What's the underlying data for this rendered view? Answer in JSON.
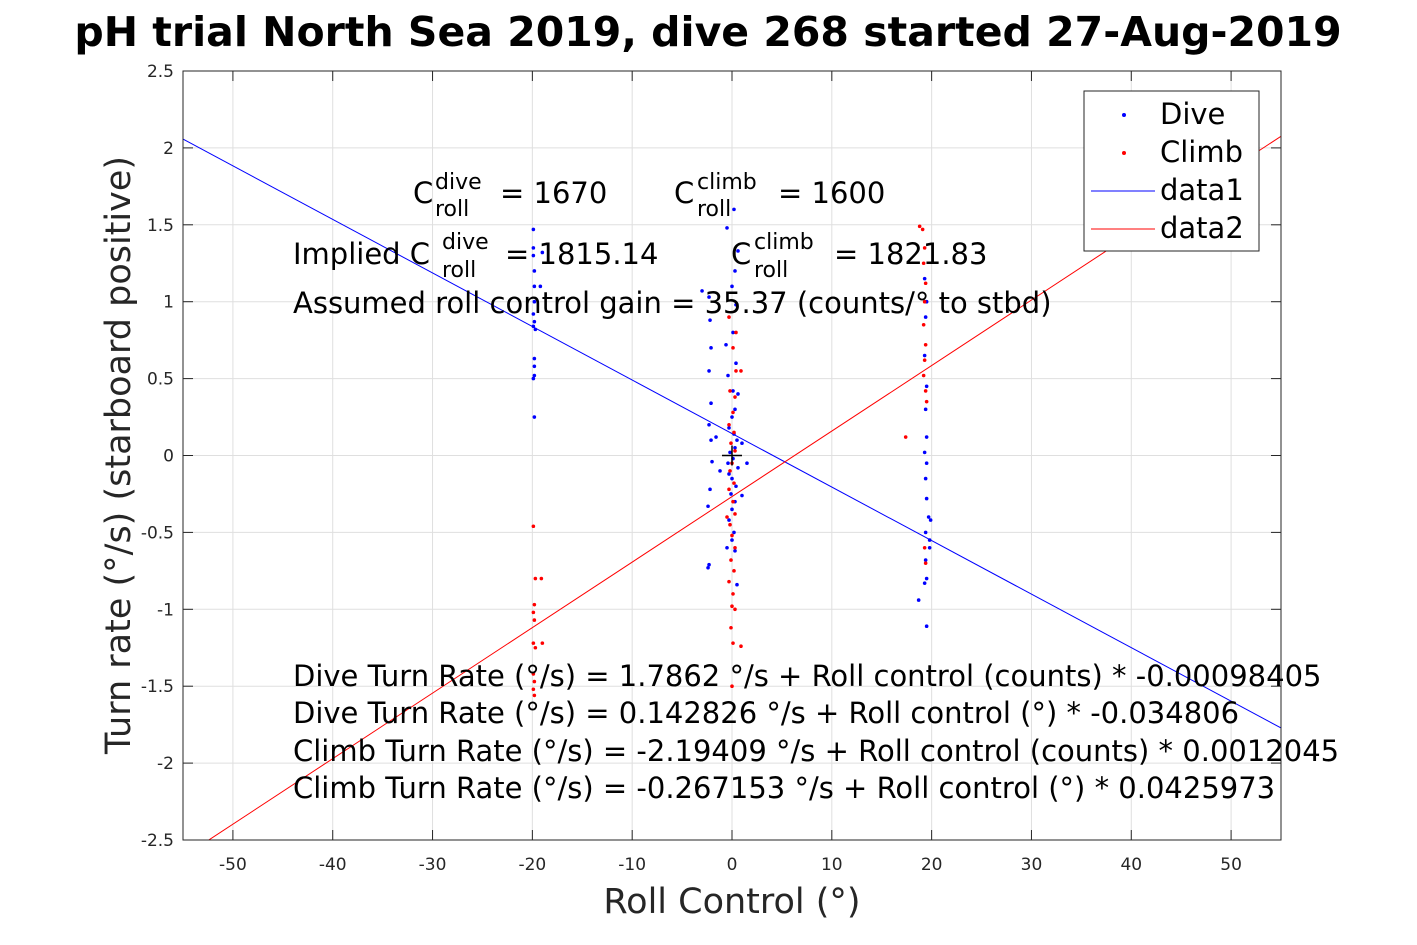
{
  "chart_data": {
    "type": "scatter",
    "title": "pH trial North Sea 2019, dive 268 started 27-Aug-2019",
    "xlabel": "Roll Control (°)",
    "ylabel": "Turn rate (°/s) (starboard positive)",
    "xlim": [
      -55,
      55
    ],
    "ylim": [
      -2.5,
      2.5
    ],
    "xticks": [
      "-50",
      "-40",
      "-30",
      "-20",
      "-10",
      "0",
      "10",
      "20",
      "30",
      "40",
      "50"
    ],
    "yticks": [
      "2.5",
      "2",
      "1.5",
      "1",
      "0.5",
      "0",
      "-0.5",
      "-1",
      "-1.5",
      "-2",
      "-2.5"
    ],
    "grid": true,
    "legend_position": "top-right",
    "legend": [
      "Dive",
      "Climb",
      "data1",
      "data2"
    ],
    "series": [
      {
        "name": "Dive",
        "kind": "points",
        "color": "#0000ff",
        "points": [
          [
            -19.9,
            1.47
          ],
          [
            -19.9,
            1.35
          ],
          [
            -19.9,
            1.3
          ],
          [
            -19.8,
            1.2
          ],
          [
            -19.8,
            1.1
          ],
          [
            -19.8,
            1.0
          ],
          [
            -19.9,
            0.92
          ],
          [
            -19.8,
            0.87
          ],
          [
            -19.9,
            0.84
          ],
          [
            -19.7,
            0.82
          ],
          [
            -19.8,
            0.63
          ],
          [
            -19.8,
            0.58
          ],
          [
            -19.8,
            0.52
          ],
          [
            -19.9,
            0.5
          ],
          [
            -19.8,
            0.25
          ],
          [
            -19,
            1.32
          ],
          [
            -19.2,
            1.1
          ],
          [
            -3,
            1.07
          ],
          [
            -2.3,
            1.03
          ],
          [
            -2.2,
            0.88
          ],
          [
            -2.1,
            0.7
          ],
          [
            -2.3,
            0.55
          ],
          [
            -2.1,
            0.34
          ],
          [
            -2.3,
            0.2
          ],
          [
            -2.1,
            0.1
          ],
          [
            -2.0,
            -0.04
          ],
          [
            -2.2,
            -0.22
          ],
          [
            -2.4,
            -0.33
          ],
          [
            -2.3,
            -0.71
          ],
          [
            -2.4,
            -0.73
          ],
          [
            -1.6,
            0.12
          ],
          [
            -1.2,
            -0.1
          ],
          [
            -0.5,
            1.48
          ],
          [
            0.2,
            1.6
          ],
          [
            0.6,
            1.33
          ],
          [
            0.3,
            1.2
          ],
          [
            0.0,
            1.1
          ],
          [
            0.4,
            0.98
          ],
          [
            0.1,
            0.8
          ],
          [
            0.4,
            0.6
          ],
          [
            0.1,
            0.42
          ],
          [
            0.3,
            0.3
          ],
          [
            0.0,
            0.25
          ],
          [
            -0.3,
            0.18
          ],
          [
            0.2,
            0.14
          ],
          [
            0.5,
            0.1
          ],
          [
            0.3,
            0.05
          ],
          [
            -0.2,
            0.02
          ],
          [
            0.1,
            -0.02
          ],
          [
            -0.4,
            -0.05
          ],
          [
            0.6,
            -0.08
          ],
          [
            -0.3,
            -0.12
          ],
          [
            0.0,
            -0.15
          ],
          [
            0.4,
            -0.2
          ],
          [
            -0.1,
            -0.25
          ],
          [
            0.3,
            -0.3
          ],
          [
            0.0,
            -0.35
          ],
          [
            -0.3,
            -0.42
          ],
          [
            0.2,
            -0.5
          ],
          [
            0.0,
            -0.55
          ],
          [
            0.3,
            -0.62
          ],
          [
            1.0,
            0.08
          ],
          [
            1.5,
            -0.05
          ],
          [
            1.0,
            -0.26
          ],
          [
            0.5,
            -0.84
          ],
          [
            -0.6,
            0.72
          ],
          [
            -0.4,
            0.52
          ],
          [
            0.6,
            0.4
          ],
          [
            -0.5,
            -0.6
          ],
          [
            19.3,
            1.15
          ],
          [
            19.5,
            1.0
          ],
          [
            19.4,
            0.9
          ],
          [
            19.3,
            0.65
          ],
          [
            19.5,
            0.45
          ],
          [
            19.4,
            0.3
          ],
          [
            19.5,
            0.12
          ],
          [
            19.3,
            0.02
          ],
          [
            19.5,
            -0.05
          ],
          [
            19.4,
            -0.15
          ],
          [
            19.5,
            -0.28
          ],
          [
            19.7,
            -0.4
          ],
          [
            19.4,
            -0.5
          ],
          [
            19.8,
            -0.6
          ],
          [
            19.4,
            -0.68
          ],
          [
            19.5,
            -0.8
          ],
          [
            19.3,
            -0.83
          ],
          [
            18.7,
            -0.94
          ],
          [
            19.5,
            -1.11
          ],
          [
            19.9,
            -0.42
          ],
          [
            19.8,
            -0.55
          ]
        ]
      },
      {
        "name": "Climb",
        "kind": "points",
        "color": "#ff0000",
        "points": [
          [
            -19.9,
            -0.46
          ],
          [
            -19.7,
            -0.8
          ],
          [
            -19.1,
            -0.8
          ],
          [
            -19.8,
            -0.97
          ],
          [
            -19.9,
            -1.02
          ],
          [
            -19.8,
            -1.07
          ],
          [
            -19.9,
            -1.22
          ],
          [
            -19.7,
            -1.25
          ],
          [
            -19.0,
            -1.22
          ],
          [
            -19.9,
            -1.42
          ],
          [
            -19.8,
            -1.47
          ],
          [
            -19.9,
            -1.52
          ],
          [
            -19.8,
            -1.56
          ],
          [
            -0.3,
            0.9
          ],
          [
            0.1,
            0.7
          ],
          [
            0.4,
            0.55
          ],
          [
            -0.2,
            0.42
          ],
          [
            0.3,
            0.38
          ],
          [
            0.1,
            0.28
          ],
          [
            -0.3,
            0.2
          ],
          [
            0.2,
            0.15
          ],
          [
            -0.1,
            0.08
          ],
          [
            0.3,
            0.03
          ],
          [
            0.0,
            -0.05
          ],
          [
            -0.2,
            -0.1
          ],
          [
            0.2,
            -0.18
          ],
          [
            -0.3,
            -0.22
          ],
          [
            0.1,
            -0.3
          ],
          [
            0.3,
            -0.38
          ],
          [
            -0.2,
            -0.45
          ],
          [
            0.0,
            -0.52
          ],
          [
            0.3,
            -0.6
          ],
          [
            -0.1,
            -0.68
          ],
          [
            0.2,
            -0.75
          ],
          [
            -0.3,
            -0.82
          ],
          [
            0.1,
            -0.9
          ],
          [
            0.0,
            -0.98
          ],
          [
            0.3,
            -1.0
          ],
          [
            -0.1,
            -1.12
          ],
          [
            0.1,
            -1.22
          ],
          [
            0.0,
            -1.5
          ],
          [
            0.9,
            0.55
          ],
          [
            0.9,
            -1.24
          ],
          [
            -0.5,
            -0.4
          ],
          [
            0.4,
            0.8
          ],
          [
            18.8,
            1.49
          ],
          [
            19.1,
            1.47
          ],
          [
            19.3,
            1.35
          ],
          [
            19.2,
            1.25
          ],
          [
            19.4,
            1.12
          ],
          [
            19.3,
            1.0
          ],
          [
            19.2,
            0.85
          ],
          [
            19.4,
            0.72
          ],
          [
            19.3,
            0.62
          ],
          [
            19.2,
            0.52
          ],
          [
            19.4,
            0.42
          ],
          [
            19.5,
            0.35
          ],
          [
            17.4,
            0.12
          ],
          [
            19.3,
            -0.6
          ],
          [
            19.4,
            -0.7
          ]
        ]
      },
      {
        "name": "data1",
        "kind": "line",
        "color": "#0000ff",
        "intercept": 0.142826,
        "slope": -0.034806
      },
      {
        "name": "data2",
        "kind": "line",
        "color": "#ff0000",
        "intercept": -0.267153,
        "slope": 0.0425973
      }
    ],
    "origin_marker": {
      "x": 0,
      "y": 0,
      "symbol": "+",
      "color": "#000000"
    },
    "annotations": {
      "c_dive": {
        "base": "C",
        "sup": "dive",
        "sub": "roll",
        "value": "= 1670"
      },
      "c_climb": {
        "base": "C",
        "sup": "climb",
        "sub": "roll",
        "value": "= 1600"
      },
      "implied_prefix": "Implied C",
      "implied_dive": {
        "sup": "dive",
        "sub": "roll",
        "value": "= 1815.14"
      },
      "implied_climb": {
        "base": "C",
        "sup": "climb",
        "sub": "roll",
        "value": "= 1821.83"
      },
      "gain": "Assumed roll control gain = 35.37 (counts/° to stbd)",
      "eq1": "Dive Turn Rate (°/s) = 1.7862 °/s + Roll control (counts) * -0.00098405",
      "eq2": "Dive Turn Rate (°/s) = 0.142826 °/s + Roll control (°) * -0.034806",
      "eq3": "Climb Turn Rate (°/s) = -2.19409 °/s + Roll control (counts) * 0.0012045",
      "eq4": "Climb Turn Rate (°/s) = -0.267153 °/s + Roll control (°) * 0.0425973"
    }
  }
}
